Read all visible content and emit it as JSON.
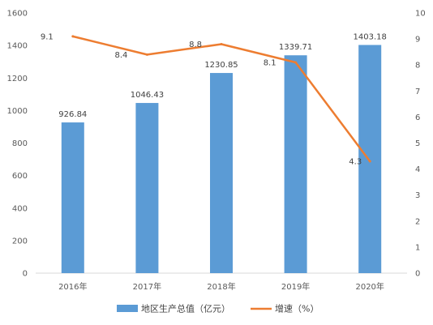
{
  "chart_data": {
    "type": "bar",
    "categories": [
      "2016年",
      "2017年",
      "2018年",
      "2019年",
      "2020年"
    ],
    "series": [
      {
        "name": "地区生产总值（亿元）",
        "type": "bar",
        "axis": "left",
        "values": [
          926.84,
          1046.43,
          1230.85,
          1339.71,
          1403.18
        ],
        "labels": [
          "926.84",
          "1046.43",
          "1230.85",
          "1339.71",
          "1403.18"
        ],
        "color": "#5b9bd5"
      },
      {
        "name": "增速（%）",
        "type": "line",
        "axis": "right",
        "values": [
          9.1,
          8.4,
          8.8,
          8.1,
          4.3
        ],
        "labels": [
          "9.1",
          "8.4",
          "8.8",
          "8.1",
          "4.3"
        ],
        "color": "#ed7d31"
      }
    ],
    "y_left": {
      "min": 0,
      "max": 1600,
      "step": 200,
      "ticks": [
        "0",
        "200",
        "400",
        "600",
        "800",
        "1000",
        "1200",
        "1400",
        "1600"
      ]
    },
    "y_right": {
      "min": 0,
      "max": 10,
      "step": 1,
      "ticks": [
        "0",
        "1",
        "2",
        "3",
        "4",
        "5",
        "6",
        "7",
        "8",
        "9",
        "10"
      ]
    },
    "grid": false,
    "legend": "bottom",
    "title": "",
    "xlabel": "",
    "ylabel": ""
  }
}
